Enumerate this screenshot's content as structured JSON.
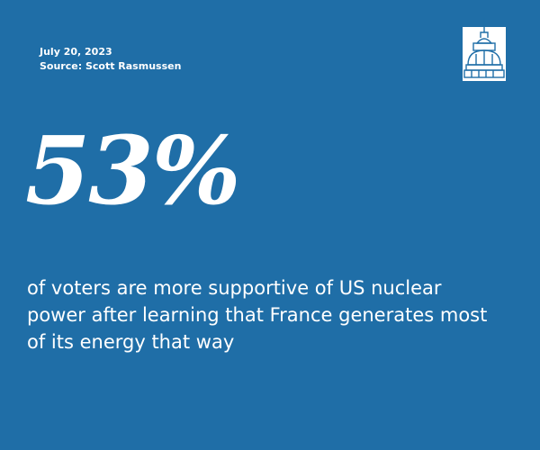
{
  "date": "July 20, 2023",
  "source": "Source: Scott Rasmussen",
  "stat": "53%",
  "description": "of voters are more supportive of US nuclear power after learning that France generates most of its energy that way"
}
